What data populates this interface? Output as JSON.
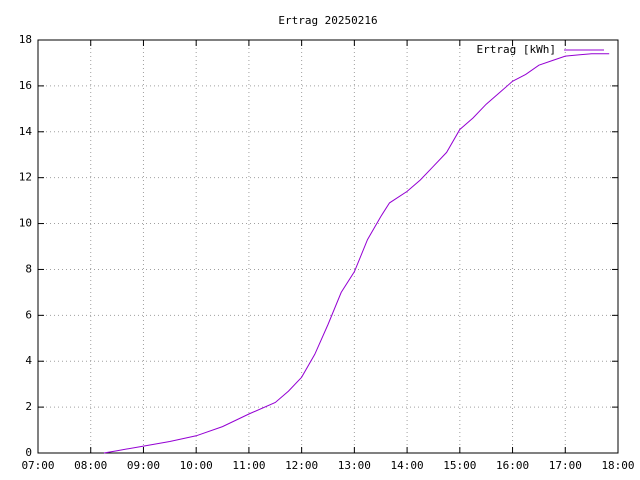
{
  "chart_data": {
    "type": "line",
    "title": "Ertrag 20250216",
    "x": [
      "08:15",
      "08:30",
      "09:00",
      "09:30",
      "10:00",
      "10:30",
      "11:00",
      "11:30",
      "11:45",
      "12:00",
      "12:15",
      "12:30",
      "12:45",
      "13:00",
      "13:15",
      "13:30",
      "13:40",
      "14:00",
      "14:15",
      "14:30",
      "14:45",
      "15:00",
      "15:15",
      "15:30",
      "15:45",
      "16:00",
      "16:15",
      "16:30",
      "16:45",
      "17:00",
      "17:15",
      "17:30",
      "17:50"
    ],
    "series": [
      {
        "name": "Ertrag [kWh]",
        "color": "#9400d3",
        "values": [
          0.0,
          0.1,
          0.3,
          0.5,
          0.75,
          1.15,
          1.7,
          2.2,
          2.7,
          3.3,
          4.3,
          5.6,
          7.0,
          7.9,
          9.3,
          10.3,
          10.9,
          11.4,
          11.9,
          12.5,
          13.1,
          14.1,
          14.6,
          15.2,
          15.7,
          16.2,
          16.5,
          16.9,
          17.1,
          17.3,
          17.35,
          17.4,
          17.4
        ]
      }
    ],
    "xlim": [
      "07:00",
      "18:00"
    ],
    "xticks": [
      "07:00",
      "08:00",
      "09:00",
      "10:00",
      "11:00",
      "12:00",
      "13:00",
      "14:00",
      "15:00",
      "16:00",
      "17:00",
      "18:00"
    ],
    "ylim": [
      0,
      18
    ],
    "yticks": [
      0,
      2,
      4,
      6,
      8,
      10,
      12,
      14,
      16,
      18
    ],
    "grid": true,
    "legend": "top-right"
  }
}
